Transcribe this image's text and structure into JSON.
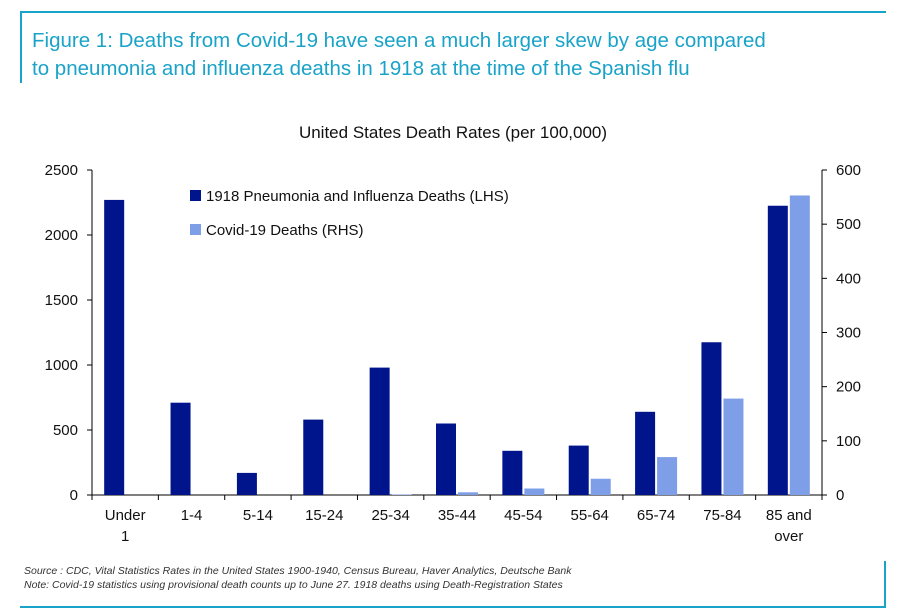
{
  "figure": {
    "title_line1": "Figure 1: Deaths from Covid-19 have seen a much larger skew by age compared",
    "title_line2": "to pneumonia and influenza deaths in 1918 at the time of the Spanish flu"
  },
  "chart_data": {
    "type": "bar",
    "title": "United States Death Rates (per 100,000)",
    "categories": [
      "Under 1",
      "1-4",
      "5-14",
      "15-24",
      "25-34",
      "35-44",
      "45-54",
      "55-64",
      "65-74",
      "75-84",
      "85 and over"
    ],
    "category_lines": [
      [
        "Under",
        "1"
      ],
      [
        "1-4"
      ],
      [
        "5-14"
      ],
      [
        "15-24"
      ],
      [
        "25-34"
      ],
      [
        "35-44"
      ],
      [
        "45-54"
      ],
      [
        "55-64"
      ],
      [
        "65-74"
      ],
      [
        "75-84"
      ],
      [
        "85 and",
        "over"
      ]
    ],
    "series": [
      {
        "name": "1918 Pneumonia and Influenza Deaths (LHS)",
        "axis": "left",
        "color": "#00148c",
        "values": [
          2270,
          710,
          170,
          580,
          980,
          550,
          340,
          380,
          640,
          1175,
          2225
        ]
      },
      {
        "name": "Covid-19 Deaths (RHS)",
        "axis": "right",
        "color": "#7f9ee8",
        "values": [
          0,
          0,
          0,
          0,
          1,
          5,
          12,
          30,
          70,
          178,
          553
        ]
      }
    ],
    "left_axis": {
      "ylim": [
        0,
        2500
      ],
      "ticks": [
        0,
        500,
        1000,
        1500,
        2000,
        2500
      ]
    },
    "right_axis": {
      "ylim": [
        0,
        600
      ],
      "ticks": [
        0,
        100,
        200,
        300,
        400,
        500,
        600
      ]
    },
    "legend_position": "top-left",
    "grid": false
  },
  "source": {
    "line1": "Source : CDC, Vital Statistics Rates in the United States 1900-1940, Census Bureau, Haver Analytics, Deutsche Bank",
    "line2": "Note: Covid-19 statistics using provisional death counts up to June 27. 1918 deaths using Death-Registration States"
  }
}
